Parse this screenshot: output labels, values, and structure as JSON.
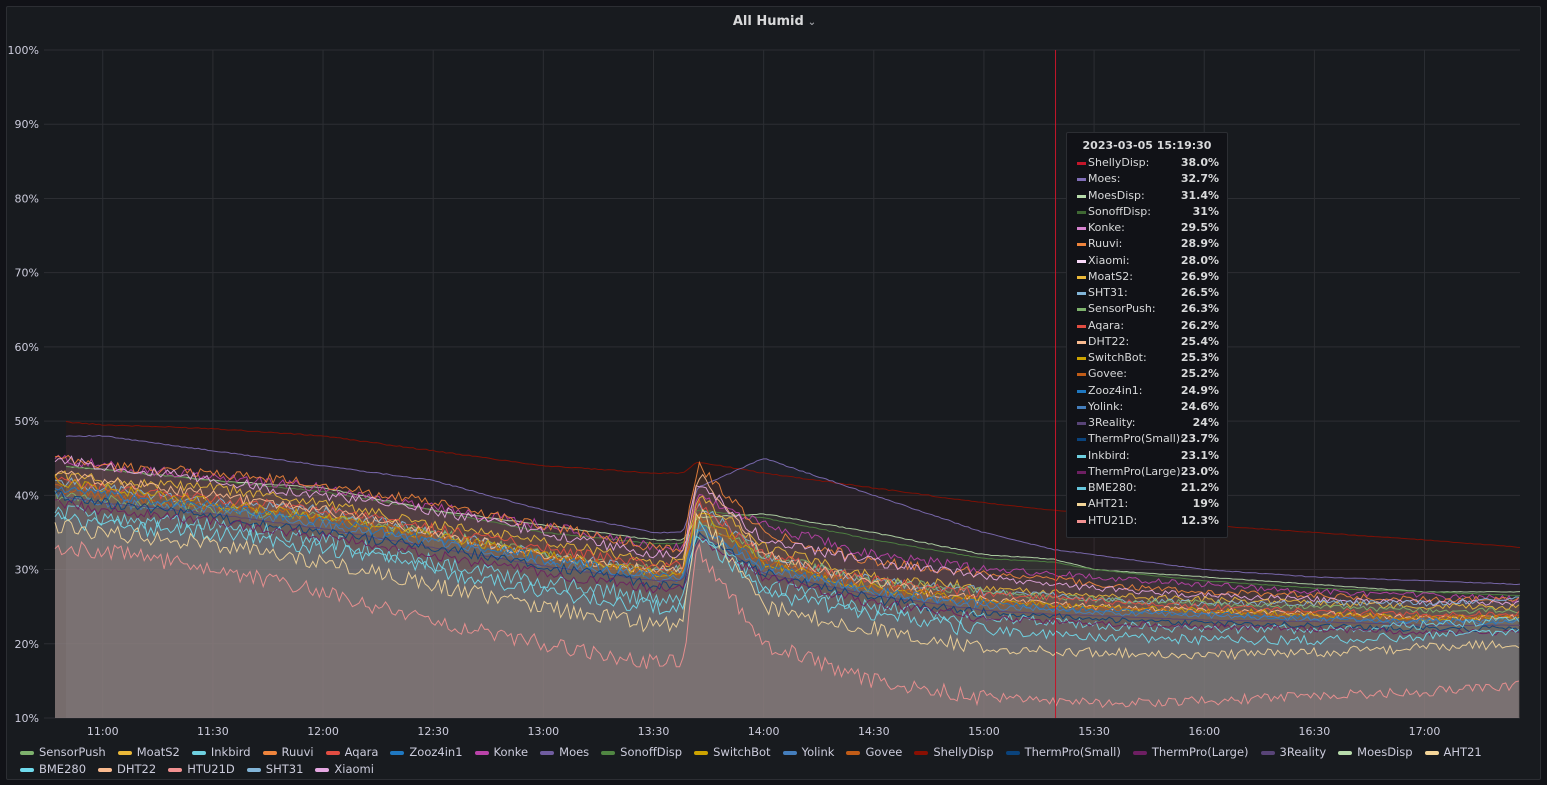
{
  "panel": {
    "title": "All Humid",
    "chevron": "⌄"
  },
  "tooltip": {
    "time": "2023-03-05 15:19:30",
    "rows": [
      {
        "name": "ShellyDisp:",
        "value": "38.0%",
        "color": "#c4162a"
      },
      {
        "name": "Moes:",
        "value": "32.7%",
        "color": "#806eb7"
      },
      {
        "name": "MoesDisp:",
        "value": "31.4%",
        "color": "#b7dbab"
      },
      {
        "name": "SonoffDisp:",
        "value": "31%",
        "color": "#3f6833"
      },
      {
        "name": "Konke:",
        "value": "29.5%",
        "color": "#d683ce"
      },
      {
        "name": "Ruuvi:",
        "value": "28.9%",
        "color": "#ef843c"
      },
      {
        "name": "Xiaomi:",
        "value": "28.0%",
        "color": "#f9d9f9"
      },
      {
        "name": "MoatS2:",
        "value": "26.9%",
        "color": "#eab839"
      },
      {
        "name": "SHT31:",
        "value": "26.5%",
        "color": "#82b5d8"
      },
      {
        "name": "SensorPush:",
        "value": "26.3%",
        "color": "#7eb26d"
      },
      {
        "name": "Aqara:",
        "value": "26.2%",
        "color": "#e24d42"
      },
      {
        "name": "DHT22:",
        "value": "25.4%",
        "color": "#f9ba8f"
      },
      {
        "name": "SwitchBot:",
        "value": "25.3%",
        "color": "#cca300"
      },
      {
        "name": "Govee:",
        "value": "25.2%",
        "color": "#c15c17"
      },
      {
        "name": "Zooz4in1:",
        "value": "24.9%",
        "color": "#1f78c1"
      },
      {
        "name": "Yolink:",
        "value": "24.6%",
        "color": "#447ebc"
      },
      {
        "name": "3Reality:",
        "value": "24%",
        "color": "#584477"
      },
      {
        "name": "ThermPro(Small):",
        "value": "23.7%",
        "color": "#0a437c"
      },
      {
        "name": "Inkbird:",
        "value": "23.1%",
        "color": "#6ed0e0"
      },
      {
        "name": "ThermPro(Large):",
        "value": "23.0%",
        "color": "#6d1f62"
      },
      {
        "name": "BME280:",
        "value": "21.2%",
        "color": "#65c5db"
      },
      {
        "name": "AHT21:",
        "value": "19%",
        "color": "#f4d598"
      },
      {
        "name": "HTU21D:",
        "value": "12.3%",
        "color": "#f29191"
      }
    ]
  },
  "legend": [
    {
      "name": "SensorPush",
      "color": "#7eb26d"
    },
    {
      "name": "MoatS2",
      "color": "#eab839"
    },
    {
      "name": "Inkbird",
      "color": "#6ed0e0"
    },
    {
      "name": "Ruuvi",
      "color": "#ef843c"
    },
    {
      "name": "Aqara",
      "color": "#e24d42"
    },
    {
      "name": "Zooz4in1",
      "color": "#1f78c1"
    },
    {
      "name": "Konke",
      "color": "#ba43a9"
    },
    {
      "name": "Moes",
      "color": "#705da0"
    },
    {
      "name": "SonoffDisp",
      "color": "#508642"
    },
    {
      "name": "SwitchBot",
      "color": "#cca300"
    },
    {
      "name": "Yolink",
      "color": "#447ebc"
    },
    {
      "name": "Govee",
      "color": "#c15c17"
    },
    {
      "name": "ShellyDisp",
      "color": "#890f02"
    },
    {
      "name": "ThermPro(Small)",
      "color": "#0a437c"
    },
    {
      "name": "ThermPro(Large)",
      "color": "#6d1f62"
    },
    {
      "name": "3Reality",
      "color": "#584477"
    },
    {
      "name": "MoesDisp",
      "color": "#b7dbab"
    },
    {
      "name": "AHT21",
      "color": "#f4d598"
    },
    {
      "name": "BME280",
      "color": "#70dbed"
    },
    {
      "name": "DHT22",
      "color": "#f9ba8f"
    },
    {
      "name": "HTU21D",
      "color": "#f29191"
    },
    {
      "name": "SHT31",
      "color": "#82b5d8"
    },
    {
      "name": "Xiaomi",
      "color": "#e5a8e2"
    }
  ],
  "chart_data": {
    "type": "area",
    "title": "All Humid",
    "y_unit": "%",
    "ylim": [
      10,
      100
    ],
    "y_ticks": [
      "10%",
      "20%",
      "30%",
      "40%",
      "50%",
      "60%",
      "70%",
      "80%",
      "90%",
      "100%"
    ],
    "x_ticks": [
      "11:00",
      "11:30",
      "12:00",
      "12:30",
      "13:00",
      "13:30",
      "14:00",
      "14:30",
      "15:00",
      "15:30",
      "16:00",
      "16:30",
      "17:00"
    ],
    "xlim": [
      "10:44",
      "17:26"
    ],
    "cursor_time": "15:19:30",
    "grid": true,
    "legend_position": "bottom",
    "x": [
      "10:47",
      "11:00",
      "11:30",
      "12:00",
      "12:30",
      "13:00",
      "13:30",
      "13:38",
      "13:42",
      "14:00",
      "14:30",
      "15:00",
      "15:19",
      "15:30",
      "16:00",
      "16:30",
      "17:00",
      "17:26"
    ],
    "series": [
      {
        "name": "ShellyDisp",
        "color": "#890f02",
        "values": [
          50,
          49.5,
          49,
          48,
          46,
          44,
          43,
          43,
          44.5,
          43,
          41,
          39,
          38,
          37.5,
          36,
          35,
          34,
          33
        ]
      },
      {
        "name": "Moes",
        "color": "#806eb7",
        "values": [
          48,
          48,
          46,
          44,
          42,
          38,
          35,
          35,
          41,
          45,
          40,
          35,
          32.7,
          32,
          30,
          29,
          28.5,
          28
        ]
      },
      {
        "name": "MoesDisp",
        "color": "#b7dbab",
        "values": [
          44,
          43.5,
          42,
          41,
          38,
          36,
          34,
          34,
          37,
          37.5,
          35,
          32,
          31.4,
          30,
          29,
          28,
          27,
          27
        ]
      },
      {
        "name": "SonoffDisp",
        "color": "#508642",
        "values": [
          44,
          43.5,
          42,
          40.5,
          38,
          35,
          33.5,
          33.5,
          38,
          37,
          34,
          31.5,
          31,
          30,
          28.5,
          27.5,
          27,
          26.5
        ]
      },
      {
        "name": "Konke",
        "color": "#ba43a9",
        "values": [
          45,
          44,
          42.5,
          41,
          38.5,
          36,
          33,
          33,
          40,
          36,
          32,
          30,
          29.5,
          29,
          28,
          27,
          26.5,
          26
        ]
      },
      {
        "name": "Ruuvi",
        "color": "#ef843c",
        "values": [
          45,
          44,
          43,
          41.5,
          39,
          36,
          33,
          33,
          44,
          35,
          31,
          29.5,
          28.9,
          28,
          27,
          26.5,
          26,
          26
        ]
      },
      {
        "name": "Xiaomi",
        "color": "#e5a8e2",
        "values": [
          45,
          44,
          42,
          40,
          38,
          35,
          32,
          32,
          42,
          34,
          31,
          29,
          28,
          27.5,
          26.5,
          26,
          25.5,
          25.5
        ]
      },
      {
        "name": "MoatS2",
        "color": "#eab839",
        "values": [
          43,
          42,
          41,
          39,
          36,
          34,
          31,
          31,
          40,
          33,
          29,
          27.5,
          26.9,
          26.5,
          26,
          25.5,
          25,
          25
        ]
      },
      {
        "name": "SHT31",
        "color": "#82b5d8",
        "values": [
          42,
          41,
          39,
          38,
          35,
          32,
          30,
          30,
          39,
          32,
          28.5,
          27,
          26.5,
          26,
          25.5,
          25.5,
          25.5,
          26
        ]
      },
      {
        "name": "SensorPush",
        "color": "#7eb26d",
        "values": [
          40,
          39.5,
          38,
          37,
          35,
          32,
          30,
          30,
          37,
          32,
          28.5,
          27,
          26.3,
          26,
          25.5,
          25,
          24.5,
          24.5
        ]
      },
      {
        "name": "Aqara",
        "color": "#e24d42",
        "values": [
          42,
          41,
          39.5,
          38,
          35.5,
          33,
          30.5,
          30.5,
          39,
          32,
          28.5,
          26.8,
          26.2,
          25.8,
          25,
          24.5,
          24,
          24
        ]
      },
      {
        "name": "DHT22",
        "color": "#f9ba8f",
        "values": [
          43,
          42,
          40,
          38,
          35,
          32,
          30,
          30,
          43,
          32,
          28,
          26,
          25.4,
          25,
          24.5,
          24,
          23.5,
          23.5
        ]
      },
      {
        "name": "SwitchBot",
        "color": "#cca300",
        "values": [
          42,
          41,
          39,
          37,
          34.5,
          32,
          29.5,
          29.5,
          38,
          31,
          27.5,
          25.8,
          25.3,
          25,
          24.5,
          24,
          23.5,
          23.5
        ]
      },
      {
        "name": "Govee",
        "color": "#c15c17",
        "values": [
          41,
          40,
          38.5,
          37,
          34.5,
          32,
          29.5,
          29.5,
          37,
          31,
          27.5,
          25.7,
          25.2,
          24.8,
          24.2,
          24,
          23.5,
          23.5
        ]
      },
      {
        "name": "Zooz4in1",
        "color": "#1f78c1",
        "values": [
          41,
          40,
          38.5,
          36.5,
          34,
          31.5,
          29,
          29,
          36,
          30.5,
          27,
          25.4,
          24.9,
          24.5,
          24,
          23.5,
          23,
          23
        ]
      },
      {
        "name": "Yolink",
        "color": "#447ebc",
        "values": [
          40,
          39,
          38,
          36,
          33.5,
          31,
          29,
          29,
          36,
          30,
          27,
          25,
          24.6,
          24.2,
          23.8,
          23.3,
          23,
          23
        ]
      },
      {
        "name": "3Reality",
        "color": "#584477",
        "values": [
          40,
          39,
          37.5,
          35.5,
          33,
          30.5,
          28.5,
          28.5,
          35,
          29.5,
          26.5,
          24.5,
          24,
          23.8,
          23.2,
          23,
          22.5,
          22.5
        ]
      },
      {
        "name": "ThermPro(Small)",
        "color": "#0a437c",
        "values": [
          40,
          39,
          37,
          35,
          33,
          30.5,
          28,
          28,
          35,
          29.5,
          26,
          24.2,
          23.7,
          23.3,
          22.8,
          22.5,
          22,
          22
        ]
      },
      {
        "name": "Inkbird",
        "color": "#6ed0e0",
        "values": [
          38,
          37,
          36,
          34,
          31,
          28.5,
          26,
          26,
          36,
          28,
          25,
          23.5,
          23.1,
          22.5,
          22,
          22,
          22.5,
          23.5
        ]
      },
      {
        "name": "ThermPro(Large)",
        "color": "#6d1f62",
        "values": [
          39,
          38,
          36.5,
          34.5,
          32,
          29.5,
          27.5,
          27.5,
          34,
          29,
          25.5,
          23.5,
          23,
          22.8,
          22.3,
          22,
          21.5,
          21.5
        ]
      },
      {
        "name": "BME280",
        "color": "#70dbed",
        "values": [
          37,
          36,
          35,
          33,
          30,
          27,
          25,
          25,
          35,
          27,
          24,
          21.8,
          21.2,
          21,
          20.5,
          20.5,
          21,
          22
        ]
      },
      {
        "name": "AHT21",
        "color": "#f4d598",
        "values": [
          36,
          35,
          33.5,
          31,
          28,
          25,
          22.5,
          22.5,
          38,
          25,
          22,
          19.5,
          19,
          18.8,
          18.5,
          18.8,
          19.5,
          20
        ]
      },
      {
        "name": "HTU21D",
        "color": "#f29191",
        "values": [
          33,
          32.5,
          30,
          27,
          23,
          20,
          17.5,
          17.5,
          33,
          20,
          15,
          12.8,
          12.3,
          12,
          12.3,
          13,
          13.5,
          14.5
        ]
      }
    ]
  }
}
